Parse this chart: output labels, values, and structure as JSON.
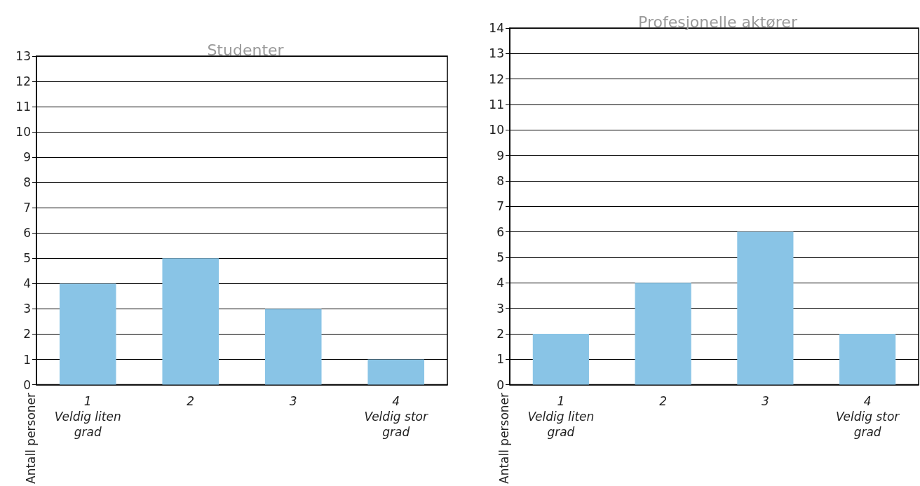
{
  "chart_data": [
    {
      "type": "bar",
      "title": "Studenter",
      "ylabel": "Antall personer",
      "categories": [
        "1\nVeldig liten\ngrad",
        "2",
        "3",
        "4\nVeldig stor\ngrad"
      ],
      "values": [
        4,
        5,
        3,
        1
      ],
      "color": "#89c4e6",
      "ylim": [
        0,
        13
      ],
      "yticks": [
        0,
        1,
        2,
        3,
        4,
        5,
        6,
        7,
        8,
        9,
        10,
        11,
        12,
        13
      ],
      "grid": "y"
    },
    {
      "type": "bar",
      "title": "Profesjonelle aktører",
      "ylabel": "Antall personer",
      "categories": [
        "1\nVeldig liten\ngrad",
        "2",
        "3",
        "4\nVeldig stor\ngrad"
      ],
      "values": [
        2,
        4,
        6,
        2
      ],
      "color": "#89c4e6",
      "ylim": [
        0,
        14
      ],
      "yticks": [
        0,
        1,
        2,
        3,
        4,
        5,
        6,
        7,
        8,
        9,
        10,
        11,
        12,
        13,
        14
      ],
      "grid": "y"
    }
  ]
}
